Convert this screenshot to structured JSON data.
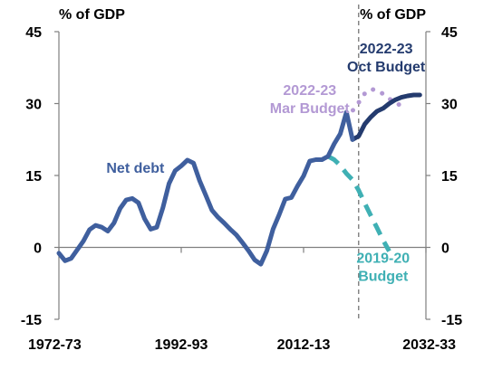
{
  "chart_data": {
    "type": "line",
    "left_axis_label": "% of GDP",
    "right_axis_label": "% of GDP",
    "ylim": [
      -15,
      45
    ],
    "yticks": [
      -15,
      0,
      15,
      30,
      45
    ],
    "ytick_labels": [
      "-15",
      "0",
      "15",
      "30",
      "45"
    ],
    "xlim": [
      1972,
      2032
    ],
    "xtick_labels": [
      {
        "x": 1972,
        "label": "1972-73"
      },
      {
        "x": 1992,
        "label": "1992-93"
      },
      {
        "x": 2012,
        "label": "2012-13"
      },
      {
        "x": 2032,
        "label": "2032-33"
      }
    ],
    "forecast_divider_x": 2021,
    "grid": false,
    "series": [
      {
        "name": "Net debt",
        "color": "#3f5f9e",
        "style": "solid",
        "points": [
          [
            1972,
            -1.2
          ],
          [
            1973,
            -2.8
          ],
          [
            1974,
            -2.3
          ],
          [
            1975,
            -0.5
          ],
          [
            1976,
            1.3
          ],
          [
            1977,
            3.7
          ],
          [
            1978,
            4.6
          ],
          [
            1979,
            4.2
          ],
          [
            1980,
            3.4
          ],
          [
            1981,
            5.1
          ],
          [
            1982,
            8.1
          ],
          [
            1983,
            9.9
          ],
          [
            1984,
            10.2
          ],
          [
            1985,
            9.3
          ],
          [
            1986,
            6.0
          ],
          [
            1987,
            3.8
          ],
          [
            1988,
            4.2
          ],
          [
            1989,
            8.3
          ],
          [
            1990,
            13.3
          ],
          [
            1991,
            16.0
          ],
          [
            1992,
            17.0
          ],
          [
            1993,
            18.2
          ],
          [
            1994,
            17.6
          ],
          [
            1995,
            13.9
          ],
          [
            1996,
            10.9
          ],
          [
            1997,
            7.8
          ],
          [
            1998,
            6.3
          ],
          [
            1999,
            5.1
          ],
          [
            2000,
            3.8
          ],
          [
            2001,
            2.6
          ],
          [
            2002,
            1.0
          ],
          [
            2003,
            -0.7
          ],
          [
            2004,
            -2.6
          ],
          [
            2005,
            -3.5
          ],
          [
            2006,
            -0.7
          ],
          [
            2007,
            3.8
          ],
          [
            2008,
            6.8
          ],
          [
            2009,
            10.1
          ],
          [
            2010,
            10.4
          ],
          [
            2011,
            12.8
          ],
          [
            2012,
            14.9
          ],
          [
            2013,
            18.0
          ],
          [
            2014,
            18.3
          ],
          [
            2015,
            18.3
          ],
          [
            2016,
            19.0
          ],
          [
            2017,
            21.6
          ],
          [
            2018,
            23.7
          ],
          [
            2019,
            28.2
          ],
          [
            2020,
            22.5
          ]
        ]
      },
      {
        "name": "2022-23 Oct Budget",
        "color": "#243b6e",
        "style": "solid",
        "points": [
          [
            2020,
            22.5
          ],
          [
            2021,
            23.2
          ],
          [
            2022,
            25.7
          ],
          [
            2023,
            27.2
          ],
          [
            2024,
            28.4
          ],
          [
            2025,
            29.0
          ],
          [
            2026,
            30.0
          ],
          [
            2027,
            30.8
          ],
          [
            2028,
            31.3
          ],
          [
            2029,
            31.6
          ],
          [
            2030,
            31.8
          ],
          [
            2031,
            31.8
          ]
        ]
      },
      {
        "name": "2022-23 Mar Budget",
        "color": "#b399d4",
        "style": "dotted",
        "points": [
          [
            2019,
            27.0
          ],
          [
            2020,
            28.5
          ],
          [
            2021,
            30.2
          ],
          [
            2022,
            32.1
          ],
          [
            2023,
            33.0
          ],
          [
            2024,
            32.8
          ],
          [
            2025,
            32.0
          ],
          [
            2026,
            31.0
          ],
          [
            2027,
            30.2
          ],
          [
            2028,
            29.5
          ],
          [
            2029,
            28.9
          ]
        ]
      },
      {
        "name": "2019-20 Budget",
        "color": "#3fb0b4",
        "style": "dashed",
        "points": [
          [
            2016,
            19.0
          ],
          [
            2017,
            18.3
          ],
          [
            2018,
            17.1
          ],
          [
            2019,
            15.4
          ],
          [
            2020,
            14.1
          ],
          [
            2021,
            11.9
          ],
          [
            2022,
            9.2
          ],
          [
            2023,
            6.6
          ],
          [
            2024,
            4.1
          ],
          [
            2025,
            1.5
          ],
          [
            2026,
            -0.8
          ]
        ]
      }
    ],
    "annotations": [
      {
        "lines": [
          "Net debt"
        ],
        "color": "#3f5f9e",
        "x": 1984.5,
        "y": 15.6,
        "align": "middle"
      },
      {
        "lines": [
          "2022-23",
          "Oct Budget"
        ],
        "color": "#243b6e",
        "x": 2025.5,
        "y": 40.5,
        "align": "middle"
      },
      {
        "lines": [
          "2022-23",
          "Mar Budget"
        ],
        "color": "#b399d4",
        "x": 2013,
        "y": 31.8,
        "align": "middle"
      },
      {
        "lines": [
          "2019-20",
          "Budget"
        ],
        "color": "#3fb0b4",
        "x": 2025,
        "y": -3.2,
        "align": "middle"
      }
    ]
  }
}
